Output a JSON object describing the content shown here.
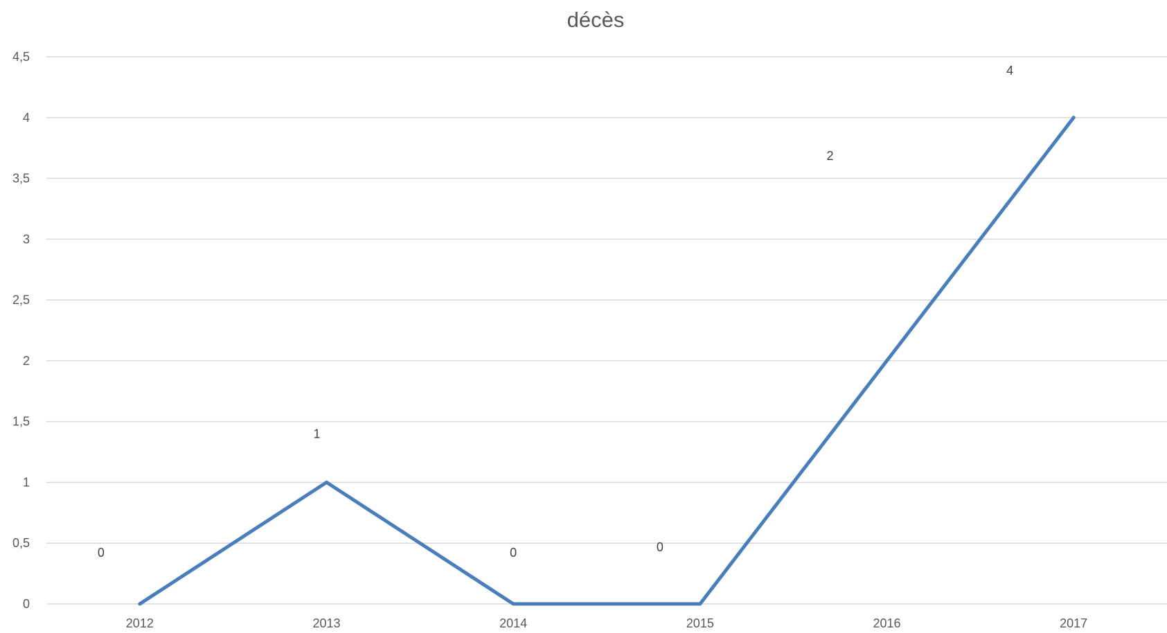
{
  "chart_data": {
    "type": "line",
    "title": "décès",
    "xlabel": "",
    "ylabel": "",
    "categories": [
      "2012",
      "2013",
      "2014",
      "2015",
      "2016",
      "2017"
    ],
    "series": [
      {
        "values": [
          0,
          1,
          0,
          0,
          2,
          4
        ],
        "color": "#4a7ebb"
      }
    ],
    "data_labels": [
      "0",
      "1",
      "0",
      "0",
      "2",
      "4"
    ],
    "ylim": [
      0,
      4.5
    ],
    "y_ticks": [
      0,
      0.5,
      1,
      1.5,
      2,
      2.5,
      3,
      3.5,
      4,
      4.5
    ],
    "y_tick_labels": [
      "0",
      "0,5",
      "1",
      "1,5",
      "2",
      "2,5",
      "3",
      "3,5",
      "4",
      "4,5"
    ],
    "grid": true,
    "legend": "none",
    "colors": {
      "gridline": "#d9d9d9",
      "axis": "#d9d9d9",
      "text": "#595959",
      "label": "#404040"
    }
  }
}
